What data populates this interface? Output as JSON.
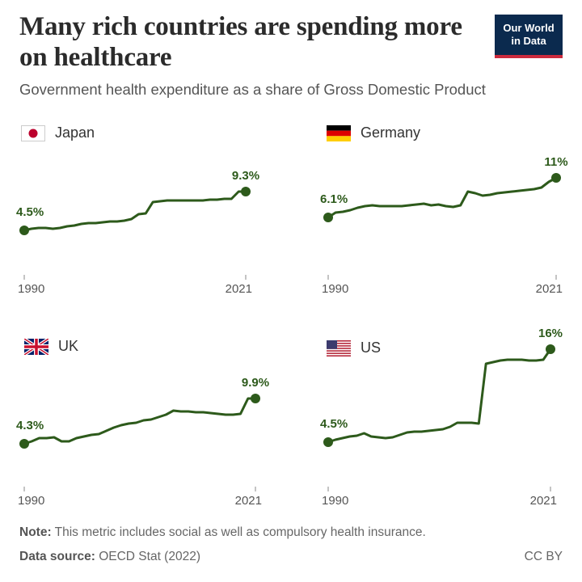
{
  "header": {
    "title": "Many rich countries are spending more on healthcare",
    "subtitle": "Government health expenditure as a share of Gross Domestic Product"
  },
  "logo": {
    "line1": "Our World",
    "line2": "in Data",
    "bg_color": "#0b2a4e",
    "accent_color": "#cc2a3d"
  },
  "line_color": "#2d5a1b",
  "chart_data": [
    {
      "type": "line",
      "country": "Japan",
      "flag_icon": "japan-flag-icon",
      "x": [
        1990,
        1991,
        1992,
        1993,
        1994,
        1995,
        1996,
        1997,
        1998,
        1999,
        2000,
        2001,
        2002,
        2003,
        2004,
        2005,
        2006,
        2007,
        2008,
        2009,
        2010,
        2011,
        2012,
        2013,
        2014,
        2015,
        2016,
        2017,
        2018,
        2019,
        2020,
        2021
      ],
      "values": [
        4.5,
        4.7,
        4.8,
        4.8,
        4.7,
        4.8,
        5.0,
        5.1,
        5.3,
        5.4,
        5.4,
        5.5,
        5.6,
        5.6,
        5.7,
        5.9,
        6.5,
        6.6,
        8.0,
        8.1,
        8.2,
        8.2,
        8.2,
        8.2,
        8.2,
        8.2,
        8.3,
        8.3,
        8.4,
        8.4,
        9.3,
        9.3
      ],
      "start_label": "4.5%",
      "end_label": "9.3%",
      "x_start_label": "1990",
      "x_end_label": "2021",
      "ylim": [
        0,
        16
      ]
    },
    {
      "type": "line",
      "country": "Germany",
      "flag_icon": "germany-flag-icon",
      "x": [
        1990,
        1991,
        1992,
        1993,
        1994,
        1995,
        1996,
        1997,
        1998,
        1999,
        2000,
        2001,
        2002,
        2003,
        2004,
        2005,
        2006,
        2007,
        2008,
        2009,
        2010,
        2011,
        2012,
        2013,
        2014,
        2015,
        2016,
        2017,
        2018,
        2019,
        2020,
        2021
      ],
      "values": [
        6.1,
        6.7,
        6.8,
        7.0,
        7.3,
        7.5,
        7.6,
        7.5,
        7.5,
        7.5,
        7.5,
        7.6,
        7.7,
        7.8,
        7.6,
        7.7,
        7.5,
        7.4,
        7.6,
        9.3,
        9.1,
        8.8,
        8.9,
        9.1,
        9.2,
        9.3,
        9.4,
        9.5,
        9.6,
        9.8,
        10.5,
        11.0
      ],
      "start_label": "6.1%",
      "end_label": "11%",
      "x_start_label": "1990",
      "x_end_label": "2021",
      "ylim": [
        0,
        16
      ]
    },
    {
      "type": "line",
      "country": "UK",
      "flag_icon": "uk-flag-icon",
      "x": [
        1990,
        1991,
        1992,
        1993,
        1994,
        1995,
        1996,
        1997,
        1998,
        1999,
        2000,
        2001,
        2002,
        2003,
        2004,
        2005,
        2006,
        2007,
        2008,
        2009,
        2010,
        2011,
        2012,
        2013,
        2014,
        2015,
        2016,
        2017,
        2018,
        2019,
        2020,
        2021
      ],
      "values": [
        4.3,
        4.6,
        5.0,
        5.0,
        5.1,
        4.6,
        4.6,
        5.0,
        5.2,
        5.4,
        5.5,
        5.9,
        6.3,
        6.6,
        6.8,
        6.9,
        7.2,
        7.3,
        7.6,
        7.9,
        8.4,
        8.3,
        8.3,
        8.2,
        8.2,
        8.1,
        8.0,
        7.9,
        7.9,
        8.0,
        9.9,
        9.9
      ],
      "start_label": "4.3%",
      "end_label": "9.9%",
      "x_start_label": "1990",
      "x_end_label": "2021",
      "ylim": [
        0,
        16
      ]
    },
    {
      "type": "line",
      "country": "US",
      "flag_icon": "us-flag-icon",
      "x": [
        1990,
        1991,
        1992,
        1993,
        1994,
        1995,
        1996,
        1997,
        1998,
        1999,
        2000,
        2001,
        2002,
        2003,
        2004,
        2005,
        2006,
        2007,
        2008,
        2009,
        2010,
        2011,
        2012,
        2013,
        2014,
        2015,
        2016,
        2017,
        2018,
        2019,
        2020,
        2021
      ],
      "values": [
        4.5,
        4.8,
        5.0,
        5.2,
        5.3,
        5.6,
        5.2,
        5.1,
        5.0,
        5.1,
        5.4,
        5.7,
        5.8,
        5.8,
        5.9,
        6.0,
        6.1,
        6.4,
        6.9,
        6.9,
        6.9,
        6.8,
        14.2,
        14.4,
        14.6,
        14.7,
        14.7,
        14.7,
        14.6,
        14.6,
        14.7,
        16.0
      ],
      "start_label": "4.5%",
      "end_label": "16%",
      "x_start_label": "1990",
      "x_end_label": "2021",
      "ylim": [
        0,
        16
      ]
    }
  ],
  "footer": {
    "note_label": "Note:",
    "note_text": "This metric includes social as well as compulsory health insurance.",
    "source_label": "Data source:",
    "source_text": "OECD Stat (2022)",
    "license": "CC BY"
  }
}
